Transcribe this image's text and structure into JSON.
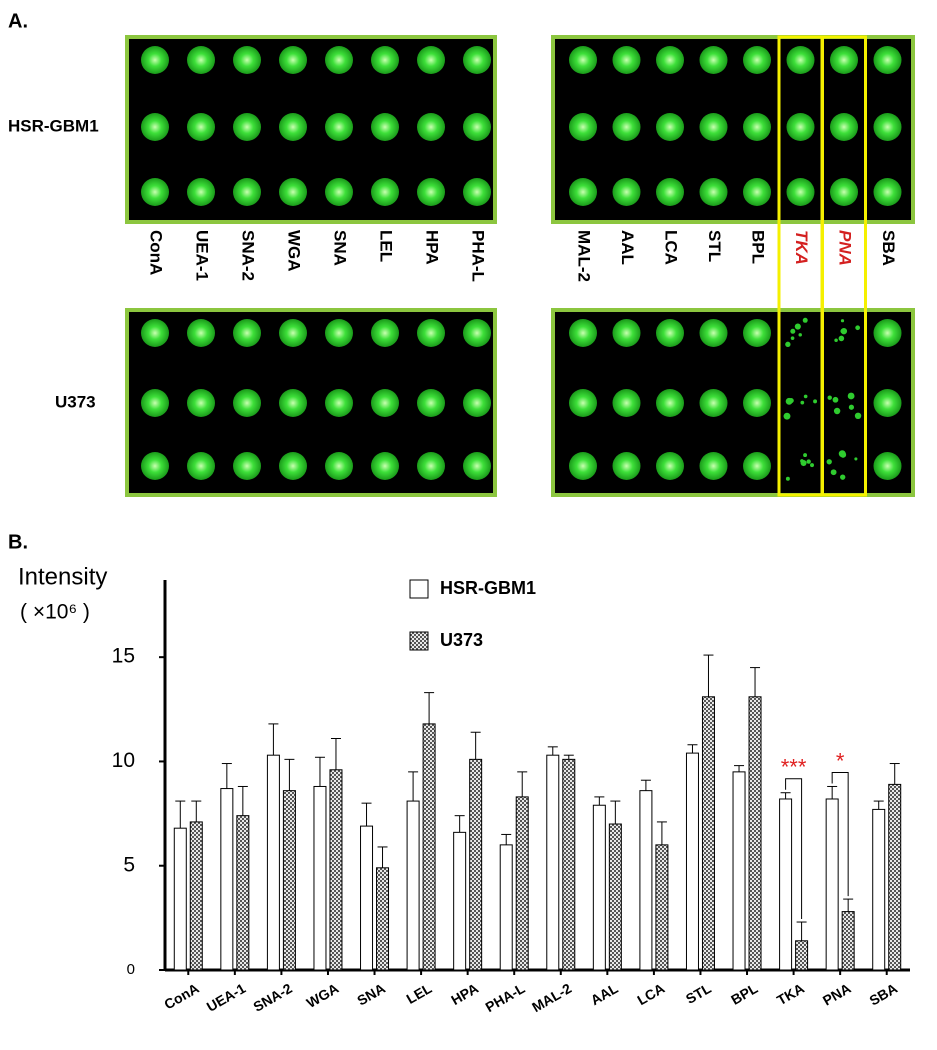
{
  "panel_a": {
    "label": "A.",
    "row_labels": [
      "HSR-GBM1",
      "U373"
    ],
    "left_lectins": [
      "ConA",
      "UEA-1",
      "SNA-2",
      "WGA",
      "SNA",
      "LEL",
      "HPA",
      "PHA-L"
    ],
    "right_lectins": [
      "MAL-2",
      "AAL",
      "LCA",
      "STL",
      "BPL",
      "TKA",
      "PNA",
      "SBA"
    ]
  },
  "chart_data": {
    "type": "bar",
    "panel_label": "B.",
    "y_label": "Intensity",
    "y_unit": "( ×10⁶ )",
    "categories": [
      "ConA",
      "UEA-1",
      "SNA-2",
      "WGA",
      "SNA",
      "LEL",
      "HPA",
      "PHA-L",
      "MAL-2",
      "AAL",
      "LCA",
      "STL",
      "BPL",
      "TKA",
      "PNA",
      "SBA"
    ],
    "series": [
      {
        "name": "HSR-GBM1",
        "color": "#ffffff",
        "values": [
          6.8,
          8.7,
          10.3,
          8.8,
          6.9,
          8.1,
          6.6,
          6.0,
          10.3,
          7.9,
          8.6,
          10.4,
          9.5,
          8.2,
          8.2,
          7.7
        ],
        "errors": [
          1.3,
          1.2,
          1.5,
          1.4,
          1.1,
          1.4,
          0.8,
          0.5,
          0.4,
          0.4,
          0.5,
          0.4,
          0.3,
          0.3,
          0.6,
          0.4
        ]
      },
      {
        "name": "U373",
        "color": "#888888",
        "values": [
          7.1,
          7.4,
          8.6,
          9.6,
          4.9,
          11.8,
          10.1,
          8.3,
          10.1,
          7.0,
          6.0,
          13.1,
          13.1,
          1.4,
          2.8,
          8.9
        ],
        "errors": [
          1.0,
          1.4,
          1.5,
          1.5,
          1.0,
          1.5,
          1.3,
          1.2,
          0.2,
          1.1,
          1.1,
          2.0,
          1.4,
          0.9,
          0.6,
          1.0
        ]
      }
    ],
    "ylim": [
      0,
      18.7
    ],
    "yticks": [
      0,
      5,
      10,
      15
    ],
    "annotations": [
      {
        "text": "***",
        "category": "TKA",
        "color": "#e02020"
      },
      {
        "text": "*",
        "category": "PNA",
        "color": "#e02020"
      }
    ]
  }
}
